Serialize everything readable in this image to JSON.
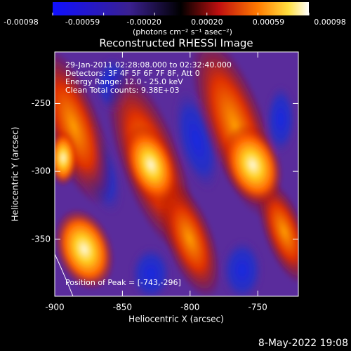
{
  "chart_data": {
    "type": "heatmap",
    "title": "Reconstructed RHESSI Image",
    "xlabel": "Heliocentric X (arcsec)",
    "ylabel": "Heliocentric Y (arcsec)",
    "xlim": [
      -900,
      -720
    ],
    "ylim": [
      -392,
      -212
    ],
    "xticks": [
      -900,
      -850,
      -800,
      -750
    ],
    "yticks": [
      -250,
      -300,
      -350
    ],
    "colorbar": {
      "label": "(photons cm⁻² s⁻¹ asec⁻²)",
      "lim": [
        -0.00098,
        0.00098
      ],
      "ticks": [
        -0.00098,
        -0.00059,
        {
          "value": -0.0002,
          "label": "-0.00020"
        },
        {
          "value": 0.0002,
          "label": "0.00020"
        },
        0.00059,
        0.00098
      ]
    },
    "annotations": [
      "29-Jan-2011 02:28:08.000 to 02:32:40.000",
      "Detectors: 3F 4F 5F 6F 7F 8F, Att 0",
      "Energy Range: 12.0 - 25.0 keV",
      "Clean    Total counts: 9.38E+03"
    ],
    "peak_label": "Position of Peak = [-743,-296]",
    "footer": "8-May-2022 19:08"
  }
}
